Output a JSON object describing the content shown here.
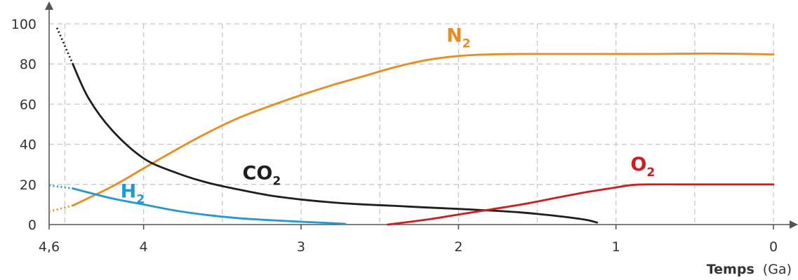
{
  "chart_data": {
    "type": "line",
    "title": "",
    "ylabel": "",
    "xlabel": {
      "bold": "Temps",
      "unit": "(Ga)"
    },
    "xlim": [
      4.6,
      0
    ],
    "ylim": [
      0,
      100
    ],
    "x_ticks": [
      {
        "value": 4.6,
        "label": "4,6"
      },
      {
        "value": 4,
        "label": "4"
      },
      {
        "value": 3,
        "label": "3"
      },
      {
        "value": 2,
        "label": "2"
      },
      {
        "value": 1,
        "label": "1"
      },
      {
        "value": 0,
        "label": "0"
      }
    ],
    "y_ticks": [
      0,
      20,
      40,
      60,
      80,
      100
    ],
    "grid": true,
    "series": [
      {
        "name": "N",
        "subscript": "2",
        "color": "#ef8a17",
        "dotted": [
          [
            4.6,
            6.5
          ],
          [
            4.45,
            9.5
          ]
        ],
        "values": [
          [
            4.45,
            9.5
          ],
          [
            4.2,
            19
          ],
          [
            4.0,
            28
          ],
          [
            3.8,
            37
          ],
          [
            3.6,
            45.5
          ],
          [
            3.4,
            53
          ],
          [
            3.2,
            59
          ],
          [
            3.0,
            64.5
          ],
          [
            2.8,
            69.5
          ],
          [
            2.6,
            74
          ],
          [
            2.4,
            78.5
          ],
          [
            2.2,
            82
          ],
          [
            2.0,
            84
          ],
          [
            1.8,
            84.8
          ],
          [
            1.6,
            85
          ],
          [
            1.2,
            85
          ],
          [
            0.8,
            85
          ],
          [
            0.4,
            85.2
          ],
          [
            0.0,
            84.8
          ]
        ],
        "label_pos": [
          2.0,
          91
        ]
      },
      {
        "name": "CO",
        "subscript": "2",
        "color": "#1e1e1e",
        "dotted": [
          [
            4.55,
            98
          ],
          [
            4.45,
            80
          ]
        ],
        "values": [
          [
            4.45,
            80
          ],
          [
            4.35,
            63
          ],
          [
            4.2,
            47
          ],
          [
            4.0,
            33
          ],
          [
            3.8,
            26
          ],
          [
            3.6,
            21
          ],
          [
            3.4,
            17.5
          ],
          [
            3.2,
            14.5
          ],
          [
            3.0,
            12.5
          ],
          [
            2.8,
            11
          ],
          [
            2.6,
            10
          ],
          [
            2.4,
            9.3
          ],
          [
            2.2,
            8.5
          ],
          [
            2.0,
            7.8
          ],
          [
            1.8,
            7
          ],
          [
            1.6,
            6
          ],
          [
            1.4,
            4.5
          ],
          [
            1.2,
            2.5
          ],
          [
            1.12,
            1
          ]
        ],
        "label_pos": [
          3.25,
          22.5
        ]
      },
      {
        "name": "H",
        "subscript": "2",
        "color": "#1f9ad6",
        "dotted": [
          [
            4.6,
            19.5
          ],
          [
            4.45,
            18
          ]
        ],
        "values": [
          [
            4.45,
            18
          ],
          [
            4.2,
            13
          ],
          [
            4.0,
            10
          ],
          [
            3.8,
            7
          ],
          [
            3.6,
            4.8
          ],
          [
            3.4,
            3.2
          ],
          [
            3.2,
            2.2
          ],
          [
            3.0,
            1.4
          ],
          [
            2.8,
            0.7
          ],
          [
            2.72,
            0.35
          ]
        ],
        "label_pos": [
          4.07,
          13.5
        ]
      },
      {
        "name": "O",
        "subscript": "2",
        "color": "#d7191c",
        "dotted": [],
        "values": [
          [
            2.45,
            0
          ],
          [
            2.2,
            2.5
          ],
          [
            2.0,
            5
          ],
          [
            1.8,
            7.5
          ],
          [
            1.6,
            10
          ],
          [
            1.4,
            13
          ],
          [
            1.2,
            16
          ],
          [
            1.0,
            18.5
          ],
          [
            0.9,
            19.7
          ],
          [
            0.8,
            20
          ],
          [
            0.6,
            20
          ],
          [
            0.4,
            20
          ],
          [
            0.2,
            20
          ],
          [
            0.0,
            20
          ]
        ],
        "label_pos": [
          0.83,
          27
        ]
      }
    ]
  }
}
